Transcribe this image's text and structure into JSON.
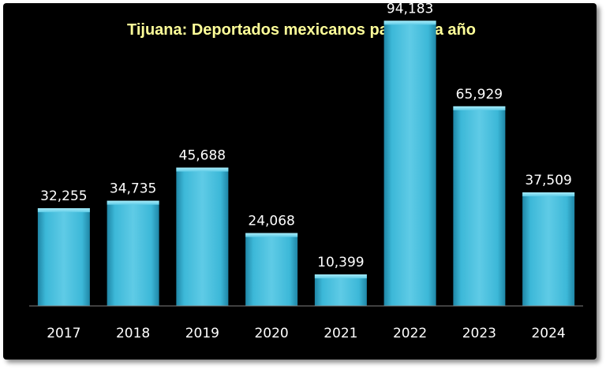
{
  "chart_data": {
    "type": "bar",
    "title": "Tijuana: Deportados mexicanos para cada año",
    "xlabel": "",
    "ylabel": "",
    "categories": [
      "2017",
      "2018",
      "2019",
      "2020",
      "2021",
      "2022",
      "2023",
      "2024"
    ],
    "values": [
      32255,
      34735,
      45688,
      24068,
      10399,
      94183,
      65929,
      37509
    ],
    "value_labels": [
      "32,255",
      "34,735",
      "45,688",
      "24,068",
      "10,399",
      "94,183",
      "65,929",
      "37,509"
    ],
    "ylim": [
      0,
      100000
    ],
    "grid": false,
    "legend": "none",
    "colors": {
      "background": "#000000",
      "title": "#ffff99",
      "bar_light": "#7ad9ef",
      "bar_mid": "#3cb8d8",
      "bar_dark": "#1f86a6",
      "text": "#ffffff",
      "axis": "#7f7f7f"
    }
  }
}
